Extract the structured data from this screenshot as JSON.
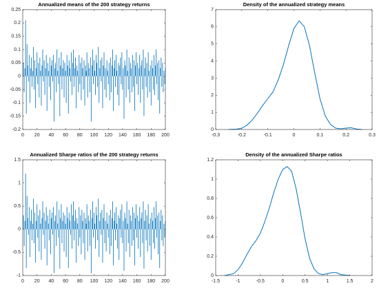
{
  "chart_data": [
    {
      "type": "bar",
      "title": "Annualized means of the 200 strategy returns",
      "color": "#0072bd",
      "xlim": [
        0,
        200
      ],
      "xticks": [
        0,
        20,
        40,
        60,
        80,
        100,
        120,
        140,
        160,
        180,
        200
      ],
      "ylim": [
        -0.2,
        0.25
      ],
      "yticks": [
        -0.2,
        -0.15,
        -0.1,
        -0.05,
        0,
        0.05,
        0.1,
        0.15,
        0.2,
        0.25
      ],
      "values": [
        0.05,
        -0.06,
        0.03,
        0.21,
        -0.14,
        0.12,
        0.04,
        -0.02,
        0.08,
        -0.1,
        0.03,
        0.07,
        -0.04,
        0.02,
        0.11,
        -0.05,
        0.06,
        -0.12,
        0.03,
        0.09,
        -0.03,
        0.05,
        -0.08,
        0.07,
        0.02,
        -0.11,
        0.04,
        0.1,
        -0.02,
        0.06,
        -0.07,
        0.03,
        0.08,
        -0.13,
        0.05,
        0.02,
        -0.04,
        0.07,
        -0.09,
        0.04,
        0.06,
        -0.02,
        0.08,
        -0.17,
        0.03,
        0.05,
        -0.06,
        0.1,
        0.02,
        -0.03,
        0.07,
        -0.15,
        0.04,
        0.09,
        -0.05,
        0.03,
        0.06,
        -0.08,
        0.05,
        0.02,
        -0.1,
        0.08,
        0.04,
        -0.14,
        0.06,
        0.03,
        -0.02,
        0.09,
        -0.07,
        0.05,
        0.1,
        -0.04,
        0.03,
        0.07,
        -0.12,
        0.04,
        0.02,
        -0.06,
        0.08,
        -0.03,
        0.05,
        -0.09,
        0.07,
        0.03,
        -0.05,
        0.06,
        -0.11,
        0.04,
        0.02,
        0.09,
        -0.08,
        0.05,
        0.03,
        -0.06,
        0.07,
        -0.17,
        0.04,
        0.1,
        -0.03,
        0.06,
        0.02,
        -0.07,
        0.08,
        0.05,
        -0.04,
        0.11,
        -0.1,
        0.03,
        0.06,
        -0.02,
        0.07,
        -0.12,
        0.04,
        0.09,
        -0.05,
        0.03,
        -0.08,
        0.06,
        0.02,
        -0.03,
        0.05,
        -0.09,
        0.07,
        -0.06,
        0.04,
        0.1,
        -0.13,
        0.03,
        0.06,
        -0.04,
        0.08,
        0.02,
        -0.07,
        0.05,
        -0.11,
        0.04,
        0.07,
        -0.03,
        0.09,
        -0.05,
        0.03,
        -0.16,
        0.06,
        0.04,
        -0.08,
        0.1,
        0.02,
        -0.05,
        0.07,
        -0.1,
        0.05,
        0.03,
        -0.06,
        0.08,
        -0.04,
        0.06,
        -0.13,
        0.04,
        0.09,
        -0.03,
        0.05,
        -0.07,
        0.03,
        0.08,
        -0.1,
        0.04,
        0.06,
        -0.05,
        0.1,
        -0.15,
        0.03,
        0.07,
        -0.04,
        0.05,
        -0.08,
        0.09,
        0.02,
        -0.06,
        0.04,
        -0.11,
        0.06,
        0.03,
        -0.05,
        0.08,
        -0.07,
        0.04,
        0.1,
        -0.03,
        0.05,
        -0.09,
        0.06,
        -0.14,
        0.03,
        0.07,
        -0.04,
        0.05,
        -0.06,
        0.02,
        -0.03,
        0.03
      ]
    },
    {
      "type": "line",
      "title": "Density of the annualized strategy means",
      "color": "#0072bd",
      "xlim": [
        -0.3,
        0.3
      ],
      "xticks": [
        -0.3,
        -0.2,
        -0.1,
        0,
        0.1,
        0.2,
        0.3
      ],
      "ylim": [
        0,
        7
      ],
      "yticks": [
        0,
        1,
        2,
        3,
        4,
        5,
        6,
        7
      ],
      "x": [
        -0.25,
        -0.22,
        -0.2,
        -0.18,
        -0.16,
        -0.14,
        -0.12,
        -0.1,
        -0.08,
        -0.06,
        -0.04,
        -0.02,
        0,
        0.02,
        0.04,
        0.06,
        0.08,
        0.1,
        0.12,
        0.14,
        0.16,
        0.18,
        0.2,
        0.22,
        0.24,
        0.26
      ],
      "y": [
        0,
        0.02,
        0.08,
        0.25,
        0.55,
        0.95,
        1.4,
        1.8,
        2.2,
        2.9,
        3.8,
        4.9,
        5.9,
        6.35,
        6.0,
        4.9,
        3.3,
        1.8,
        0.8,
        0.3,
        0.08,
        0.04,
        0.08,
        0.1,
        0.03,
        0
      ]
    },
    {
      "type": "bar",
      "title": "Annualized Sharpe ratios of the 200 strategy returns",
      "color": "#0072bd",
      "xlim": [
        0,
        200
      ],
      "xticks": [
        0,
        20,
        40,
        60,
        80,
        100,
        120,
        140,
        160,
        180,
        200
      ],
      "ylim": [
        -1,
        1.5
      ],
      "yticks": [
        -1,
        -0.5,
        0,
        0.5,
        1,
        1.5
      ],
      "values": [
        0.3,
        -0.36,
        0.18,
        1.2,
        -0.84,
        0.72,
        0.24,
        -0.12,
        0.48,
        -0.6,
        0.18,
        0.42,
        -0.24,
        0.12,
        0.66,
        -0.3,
        0.36,
        -0.72,
        0.18,
        0.54,
        -0.18,
        0.3,
        -0.48,
        0.42,
        0.12,
        -0.66,
        0.24,
        0.6,
        -0.12,
        0.36,
        -0.42,
        0.18,
        0.48,
        -0.78,
        0.3,
        0.12,
        -0.24,
        0.42,
        -0.54,
        0.24,
        0.36,
        -0.12,
        0.48,
        -0.95,
        0.18,
        0.3,
        -0.36,
        0.6,
        0.12,
        -0.18,
        0.42,
        -0.85,
        0.24,
        0.54,
        -0.3,
        0.18,
        0.36,
        -0.48,
        0.3,
        0.12,
        -0.6,
        0.48,
        0.24,
        -0.84,
        0.36,
        0.18,
        -0.12,
        0.54,
        -0.42,
        0.3,
        0.6,
        -0.24,
        0.18,
        0.42,
        -0.72,
        0.24,
        0.12,
        -0.36,
        0.48,
        -0.18,
        0.3,
        -0.54,
        0.42,
        0.18,
        -0.3,
        0.36,
        -0.66,
        0.24,
        0.12,
        0.54,
        -0.48,
        0.3,
        0.18,
        -0.36,
        0.42,
        -0.95,
        0.24,
        0.6,
        -0.18,
        0.36,
        0.12,
        -0.42,
        0.48,
        0.3,
        -0.24,
        0.66,
        -0.6,
        0.18,
        0.36,
        -0.12,
        0.42,
        -0.72,
        0.24,
        0.54,
        -0.3,
        0.18,
        -0.48,
        0.36,
        0.12,
        -0.18,
        0.3,
        -0.54,
        0.42,
        -0.36,
        0.24,
        0.6,
        -0.78,
        0.18,
        0.36,
        -0.24,
        0.48,
        0.12,
        -0.42,
        0.3,
        -0.66,
        0.24,
        0.42,
        -0.18,
        0.54,
        -0.3,
        0.18,
        -0.9,
        0.36,
        0.24,
        -0.48,
        0.6,
        0.12,
        -0.3,
        0.42,
        -0.6,
        0.3,
        0.18,
        -0.36,
        0.48,
        -0.24,
        0.36,
        -0.78,
        0.24,
        0.54,
        -0.18,
        0.3,
        -0.42,
        0.18,
        0.48,
        -0.6,
        0.24,
        0.36,
        -0.3,
        0.6,
        -0.85,
        0.18,
        0.42,
        -0.24,
        0.3,
        -0.48,
        0.54,
        0.12,
        -0.36,
        0.24,
        -0.66,
        0.36,
        0.18,
        -0.3,
        0.48,
        -0.42,
        0.24,
        0.6,
        -0.18,
        0.3,
        -0.54,
        0.36,
        -0.84,
        0.18,
        0.42,
        -0.24,
        0.3,
        -0.36,
        0.12,
        -0.18,
        0.18
      ]
    },
    {
      "type": "line",
      "title": "Density of the annualized Sharpe ratios",
      "color": "#0072bd",
      "xlim": [
        -1.5,
        2
      ],
      "xticks": [
        -1.5,
        -1,
        -0.5,
        0,
        0.5,
        1,
        1.5,
        2
      ],
      "ylim": [
        0,
        1.2
      ],
      "yticks": [
        0,
        0.2,
        0.4,
        0.6,
        0.8,
        1,
        1.2
      ],
      "x": [
        -1.3,
        -1.1,
        -1,
        -0.9,
        -0.8,
        -0.7,
        -0.6,
        -0.5,
        -0.4,
        -0.3,
        -0.2,
        -0.1,
        0,
        0.1,
        0.2,
        0.3,
        0.4,
        0.5,
        0.6,
        0.7,
        0.8,
        0.9,
        1,
        1.1,
        1.2,
        1.3,
        1.5
      ],
      "y": [
        0,
        0.02,
        0.06,
        0.13,
        0.22,
        0.3,
        0.36,
        0.44,
        0.56,
        0.7,
        0.86,
        1.0,
        1.1,
        1.13,
        1.08,
        0.9,
        0.65,
        0.38,
        0.18,
        0.07,
        0.02,
        0.01,
        0.02,
        0.03,
        0.03,
        0.01,
        0
      ]
    }
  ]
}
